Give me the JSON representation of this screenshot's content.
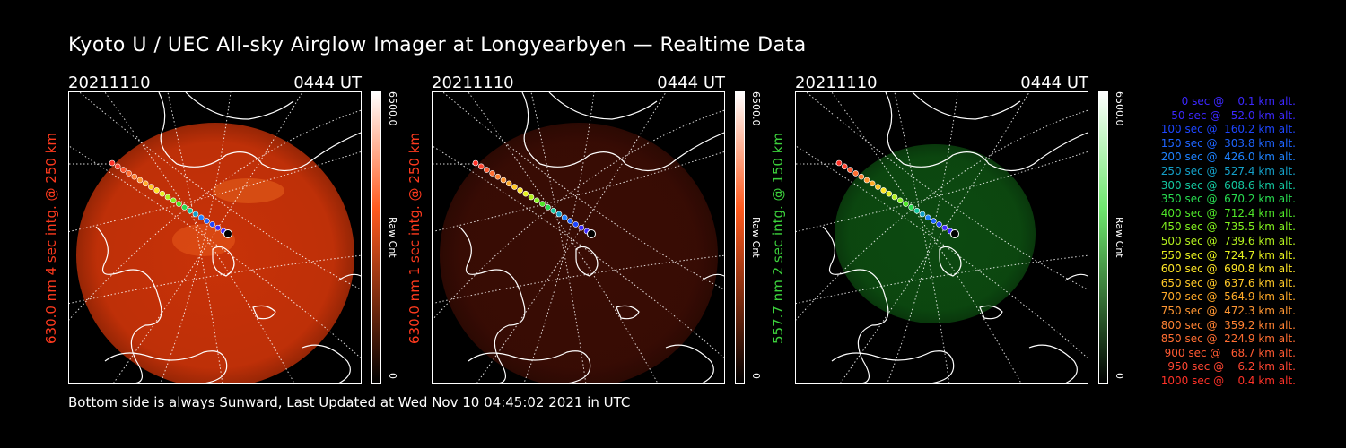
{
  "title": "Kyoto U / UEC All-sky Airglow Imager at Longyearbyen — Realtime Data",
  "footer": "Bottom side is always Sunward, Last Updated at Wed Nov 10 04:45:02 2021 in UTC",
  "panels": [
    {
      "date": "20211110",
      "time": "0444 UT",
      "ylabel": "630.0 nm 4 sec intg. @ 250 km",
      "label_color": "#ff3a1e",
      "cb_max": "6500.0",
      "cb_min": "0",
      "cb_unit": "Raw Cnt",
      "cb_top": "#ffffff",
      "cb_mid": "#ff5a1e",
      "cb_bottom": "#000000",
      "sky_color": "#c83208",
      "brightness": 1.0,
      "sky_visible": true
    },
    {
      "date": "20211110",
      "time": "0444 UT",
      "ylabel": "630.0 nm 1 sec intg. @ 250 km",
      "label_color": "#ff3a1e",
      "cb_max": "6500.0",
      "cb_min": "0",
      "cb_unit": "Raw Cnt",
      "cb_top": "#ffffff",
      "cb_mid": "#ff5a1e",
      "cb_bottom": "#000000",
      "sky_color": "#3a0c04",
      "brightness": 0.3,
      "sky_visible": true
    },
    {
      "date": "20211110",
      "time": "0444 UT",
      "ylabel": "557.7 nm 2 sec intg. @ 150 km",
      "label_color": "#3cd23c",
      "cb_max": "6500.0",
      "cb_min": "0",
      "cb_unit": "Raw Cnt",
      "cb_top": "#ffffff",
      "cb_mid": "#6ee66e",
      "cb_bottom": "#000000",
      "sky_color": "#0c4a10",
      "brightness": 0.6,
      "sky_visible": true
    }
  ],
  "legend": [
    {
      "text": "   0 sec @    0.1 km alt.",
      "color": "#3c28ff"
    },
    {
      "text": "  50 sec @   52.0 km alt.",
      "color": "#3c28ff"
    },
    {
      "text": " 100 sec @  160.2 km alt.",
      "color": "#1e46ff"
    },
    {
      "text": " 150 sec @  303.8 km alt.",
      "color": "#1e64ff"
    },
    {
      "text": " 200 sec @  426.0 km alt.",
      "color": "#1e82ff"
    },
    {
      "text": " 250 sec @  527.4 km alt.",
      "color": "#14a0c8"
    },
    {
      "text": " 300 sec @  608.6 km alt.",
      "color": "#14c8a0"
    },
    {
      "text": " 350 sec @  670.2 km alt.",
      "color": "#28dc50"
    },
    {
      "text": " 400 sec @  712.4 km alt.",
      "color": "#50e628"
    },
    {
      "text": " 450 sec @  735.5 km alt.",
      "color": "#82f01e"
    },
    {
      "text": " 500 sec @  739.6 km alt.",
      "color": "#b4f01e"
    },
    {
      "text": " 550 sec @  724.7 km alt.",
      "color": "#e6f01e"
    },
    {
      "text": " 600 sec @  690.8 km alt.",
      "color": "#ffe628"
    },
    {
      "text": " 650 sec @  637.6 km alt.",
      "color": "#ffc828"
    },
    {
      "text": " 700 sec @  564.9 km alt.",
      "color": "#ffaa28"
    },
    {
      "text": " 750 sec @  472.3 km alt.",
      "color": "#ff9632"
    },
    {
      "text": " 800 sec @  359.2 km alt.",
      "color": "#ff8232"
    },
    {
      "text": " 850 sec @  224.9 km alt.",
      "color": "#ff6e32"
    },
    {
      "text": " 900 sec @   68.7 km alt.",
      "color": "#ff5a32"
    },
    {
      "text": " 950 sec @    6.2 km alt.",
      "color": "#ff4632"
    },
    {
      "text": "1000 sec @    0.4 km alt.",
      "color": "#ff3228"
    }
  ]
}
